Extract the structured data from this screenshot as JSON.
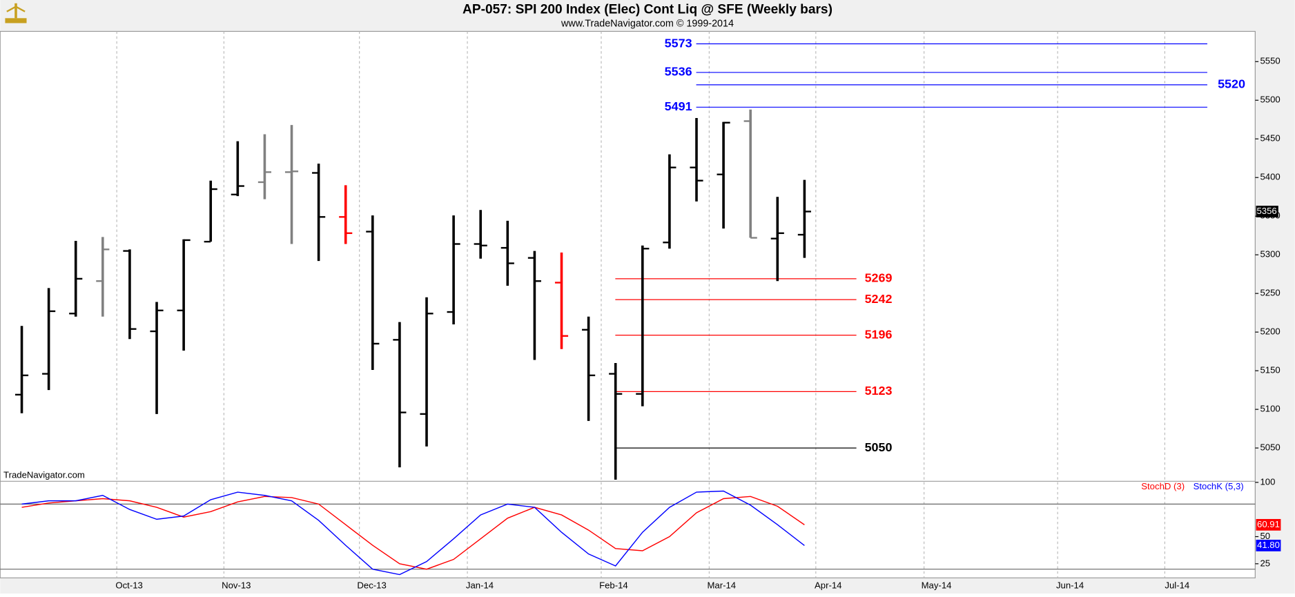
{
  "chart_data": [
    {
      "type": "ohlc",
      "title": "AP-057:  SPI 200 Index (Elec) Cont Liq @ SFE  (Weekly bars)",
      "subtitle": "www.TradeNavigator.com © 1999-2014",
      "watermark": "TradeNavigator.com",
      "categories": [
        null,
        null,
        null,
        null,
        null,
        null,
        null,
        null,
        null,
        null,
        null,
        null,
        null,
        null,
        null,
        null,
        null,
        null,
        null,
        null,
        null,
        null,
        null,
        null,
        null,
        null,
        null,
        null,
        null,
        null
      ],
      "open": [
        5119,
        5146,
        5224,
        5266,
        5305,
        5201,
        5228,
        5317,
        5378,
        5394,
        5407,
        5406,
        5349,
        5330,
        5190,
        5094,
        5226,
        5314,
        5309,
        5296,
        5264,
        5203,
        5146,
        5120,
        5316,
        5413,
        5404,
        5473,
        5321,
        5326
      ],
      "high": [
        5208,
        5257,
        5318,
        5323,
        5307,
        5239,
        5320,
        5396,
        5447,
        5456,
        5468,
        5418,
        5390,
        5351,
        5213,
        5245,
        5351,
        5358,
        5344,
        5305,
        5303,
        5220,
        5160,
        5312,
        5430,
        5477,
        5472,
        5488,
        5375,
        5397
      ],
      "low": [
        5095,
        5125,
        5220,
        5220,
        5191,
        5094,
        5176,
        5317,
        5376,
        5372,
        5314,
        5292,
        5314,
        5151,
        5025,
        5052,
        5210,
        5295,
        5260,
        5164,
        5178,
        5085,
        5009,
        5104,
        5308,
        5369,
        5334,
        5322,
        5266,
        5296
      ],
      "close": [
        5144,
        5227,
        5269,
        5307,
        5204,
        5228,
        5319,
        5385,
        5389,
        5407,
        5408,
        5349,
        5328,
        5185,
        5096,
        5224,
        5314,
        5312,
        5289,
        5266,
        5195,
        5144,
        5120,
        5308,
        5413,
        5396,
        5471,
        5322,
        5328,
        5356
      ],
      "colors": [
        "#000000",
        "#000000",
        "#000000",
        "#808080",
        "#000000",
        "#000000",
        "#000000",
        "#000000",
        "#000000",
        "#808080",
        "#808080",
        "#000000",
        "#ff0000",
        "#000000",
        "#000000",
        "#000000",
        "#000000",
        "#000000",
        "#000000",
        "#000000",
        "#ff0000",
        "#000000",
        "#000000",
        "#000000",
        "#000000",
        "#000000",
        "#000000",
        "#808080",
        "#000000",
        "#000000"
      ],
      "levels": [
        {
          "value": 5573,
          "color": "#0000ff"
        },
        {
          "value": 5536,
          "color": "#0000ff"
        },
        {
          "value": 5520,
          "color": "#0000ff"
        },
        {
          "value": 5491,
          "color": "#0000ff"
        },
        {
          "value": 5269,
          "color": "#ff0000"
        },
        {
          "value": 5242,
          "color": "#ff0000"
        },
        {
          "value": 5196,
          "color": "#ff0000"
        },
        {
          "value": 5123,
          "color": "#ff0000"
        },
        {
          "value": 5050,
          "color": "#000000"
        }
      ],
      "xlim": [
        -0.8,
        45.7
      ],
      "xticks": [
        {
          "value": 3.52,
          "label": "Oct-13"
        },
        {
          "value": 7.49,
          "label": "Nov-13"
        },
        {
          "value": 12.51,
          "label": "Dec-13"
        },
        {
          "value": 16.51,
          "label": "Jan-14"
        },
        {
          "value": 21.47,
          "label": "Feb-14"
        },
        {
          "value": 25.47,
          "label": "Mar-14"
        },
        {
          "value": 29.42,
          "label": "Apr-14"
        },
        {
          "value": 33.43,
          "label": "May-14"
        },
        {
          "value": 38.38,
          "label": "Jun-14"
        },
        {
          "value": 42.35,
          "label": "Jul-14"
        }
      ],
      "ylim": [
        5008,
        5587
      ],
      "yticks": [
        5050,
        5100,
        5150,
        5200,
        5250,
        5300,
        5350,
        5400,
        5450,
        5500,
        5550
      ],
      "grid": true
    },
    {
      "type": "line",
      "categories": [
        null,
        null,
        null,
        null,
        null,
        null,
        null,
        null,
        null,
        null,
        null,
        null,
        null,
        null,
        null,
        null,
        null,
        null,
        null,
        null,
        null,
        null,
        null,
        null,
        null,
        null,
        null,
        null,
        null,
        null
      ],
      "series": [
        {
          "name": "StochD (3)",
          "color": "#ff0000",
          "values": [
            77,
            81,
            83,
            85,
            83,
            77,
            68,
            73,
            82,
            87,
            86,
            80,
            61,
            42,
            25,
            20,
            29,
            48,
            67,
            77,
            70,
            56,
            39,
            37,
            50,
            72,
            85,
            87,
            78,
            60.91
          ]
        },
        {
          "name": "StochK (5,3)",
          "color": "#0000ff",
          "values": [
            80,
            83,
            83,
            88,
            75,
            66,
            69,
            84,
            91,
            88,
            83,
            65,
            42,
            20,
            15,
            27,
            48,
            70,
            80,
            77,
            54,
            34,
            23,
            54,
            77,
            91,
            92,
            79,
            61,
            41.8
          ],
          "value_labels": [
            null,
            null,
            null,
            null,
            null,
            null,
            null,
            null,
            null,
            null,
            null,
            null,
            null,
            null,
            null,
            null,
            null,
            null,
            null,
            null,
            null,
            null,
            null,
            null,
            null,
            null,
            null,
            null,
            null,
            "41.80"
          ]
        }
      ],
      "hlines": [
        80,
        20
      ],
      "ylim": [
        12,
        101
      ],
      "yticks": [
        25,
        50,
        100
      ]
    }
  ]
}
